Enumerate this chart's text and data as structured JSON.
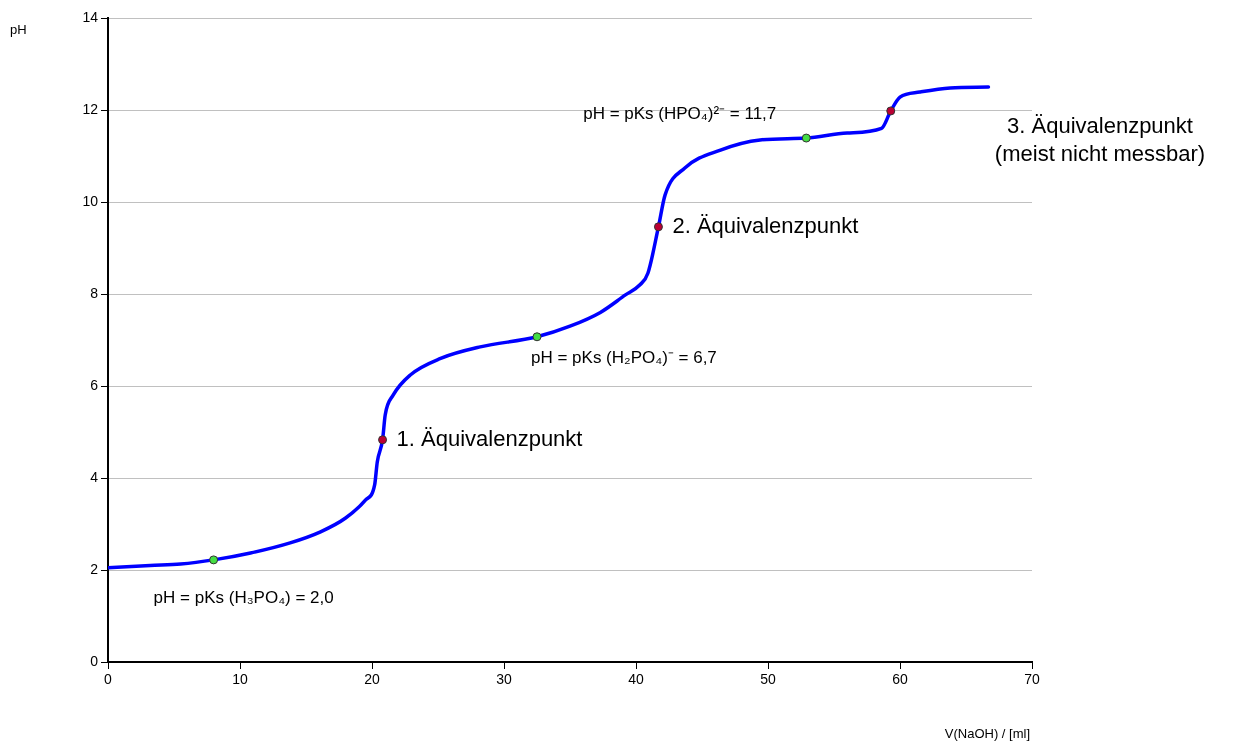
{
  "chart_data": {
    "type": "line",
    "xlabel": "V(NaOH) / [ml]",
    "ylabel": "pH",
    "xlim": [
      0,
      70
    ],
    "xticks": [
      0,
      10,
      20,
      30,
      40,
      50,
      60,
      70
    ],
    "ylim": [
      0,
      14
    ],
    "yticks": [
      0,
      2,
      4,
      6,
      8,
      10,
      12,
      14
    ],
    "grid": "y",
    "legend": false,
    "series": [
      {
        "type": "line",
        "color": "#0000ff",
        "marker": "none",
        "line_style": "solid",
        "x": [
          0,
          3.2,
          5.5,
          8,
          10.8,
          13.8,
          16.1,
          18,
          19.5,
          20.2,
          20.4,
          20.8,
          21,
          21.6,
          22.9,
          25.2,
          28.2,
          32.5,
          35,
          37.3,
          39.2,
          40.3,
          40.9,
          41.7,
          42.2,
          43.7,
          46.4,
          49.4,
          52.9,
          56,
          58.6,
          59.3,
          60,
          61.5,
          63.8,
          66.7
        ],
        "values": [
          2.05,
          2.1,
          2.13,
          2.22,
          2.37,
          2.59,
          2.83,
          3.13,
          3.52,
          3.85,
          4.35,
          4.83,
          5.37,
          5.8,
          6.24,
          6.6,
          6.85,
          7.07,
          7.3,
          7.6,
          7.98,
          8.2,
          8.45,
          9.46,
          10.15,
          10.74,
          11.13,
          11.35,
          11.39,
          11.5,
          11.6,
          11.98,
          12.28,
          12.39,
          12.48,
          12.5
        ]
      },
      {
        "type": "scatter",
        "marker": "circle",
        "x": [
          8,
          20.8,
          32.5,
          41.7,
          52.9,
          59.3
        ],
        "values": [
          2.22,
          4.83,
          7.07,
          9.46,
          11.39,
          11.98
        ],
        "colors": [
          "#44dd44",
          "#bb0033",
          "#44dd44",
          "#bb0033",
          "#44dd44",
          "#bb0033"
        ]
      }
    ],
    "annotations": [
      {
        "text": "pH = pKs (H₃PO₄) = 2,0",
        "x": 8,
        "y": 2.22
      },
      {
        "text": "1. Äquivalenzpunkt",
        "x": 20.8,
        "y": 4.83
      },
      {
        "text": "pH = pKs (H₂PO₄)⁻ = 6,7",
        "x": 32.5,
        "y": 7.07
      },
      {
        "text": "2. Äquivalenzpunkt",
        "x": 41.7,
        "y": 9.46
      },
      {
        "text": "pH = pKs (HPO₄)²⁻ = 11,7",
        "x": 52.9,
        "y": 11.39
      },
      "3. Äquivalenzpunkt\n(meist nicht messbar)"
    ]
  }
}
